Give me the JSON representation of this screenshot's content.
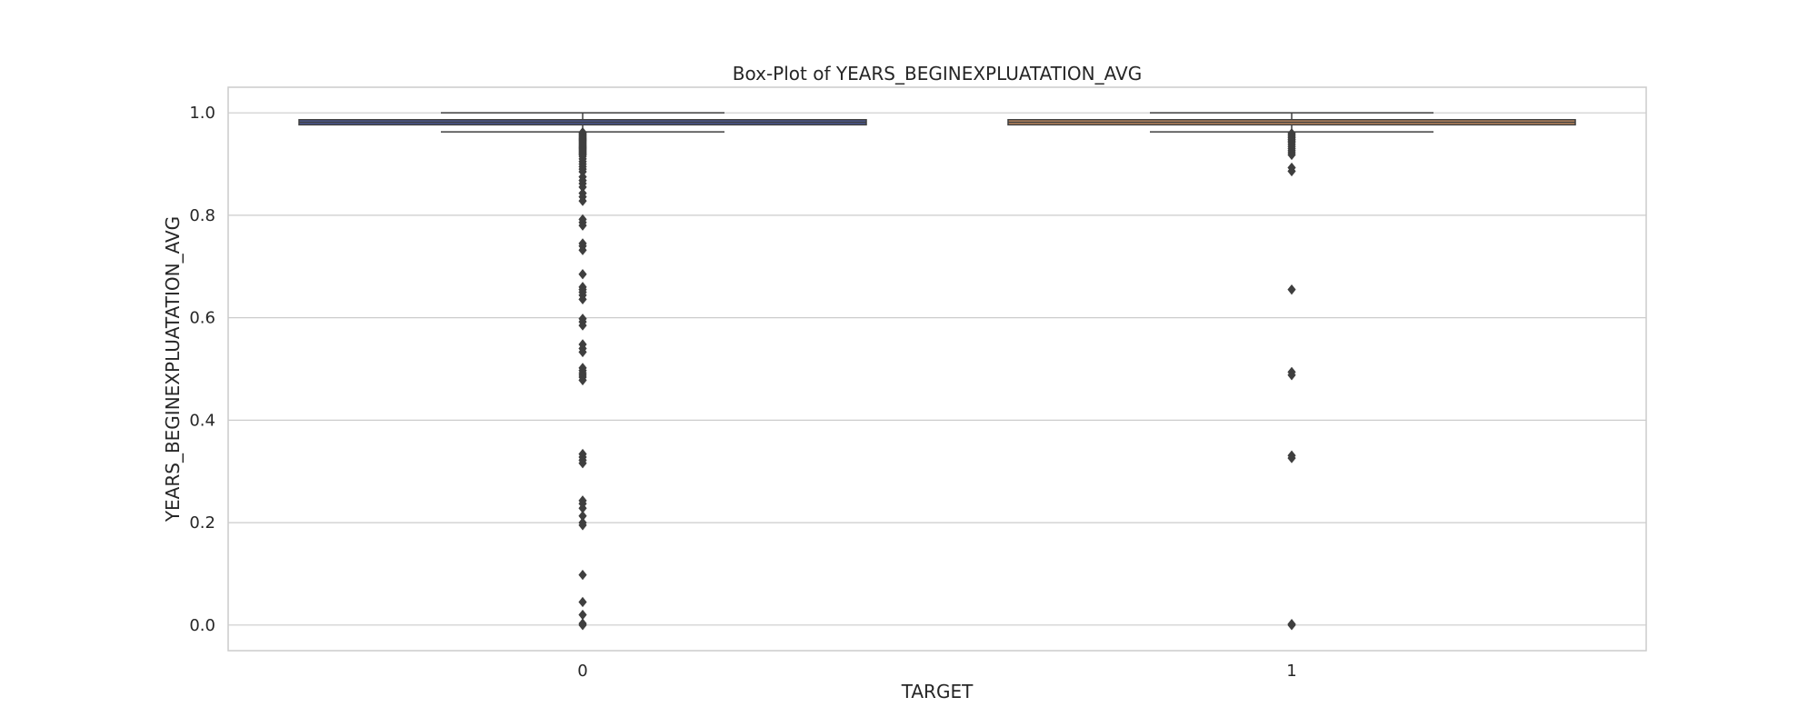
{
  "chart_data": {
    "type": "box",
    "title": "Box-Plot of YEARS_BEGINEXPLUATATION_AVG",
    "xlabel": "TARGET",
    "ylabel": "YEARS_BEGINEXPLUATATION_AVG",
    "categories": [
      "0",
      "1"
    ],
    "ylim": [
      -0.05,
      1.05
    ],
    "yticks": [
      0.0,
      0.2,
      0.4,
      0.6,
      0.8,
      1.0
    ],
    "ytick_labels": [
      "0.0",
      "0.2",
      "0.4",
      "0.6",
      "0.8",
      "1.0"
    ],
    "grid": true,
    "boxes": [
      {
        "category": "0",
        "color": "#4c5a9a",
        "q1": 0.9767,
        "median": 0.9816,
        "q3": 0.9866,
        "whisker_low": 0.9628,
        "whisker_high": 1.0,
        "outliers": [
          0.962,
          0.96,
          0.958,
          0.956,
          0.954,
          0.952,
          0.95,
          0.948,
          0.946,
          0.944,
          0.942,
          0.94,
          0.938,
          0.936,
          0.934,
          0.932,
          0.93,
          0.928,
          0.926,
          0.924,
          0.922,
          0.92,
          0.918,
          0.915,
          0.91,
          0.905,
          0.9,
          0.895,
          0.89,
          0.885,
          0.875,
          0.868,
          0.862,
          0.855,
          0.843,
          0.836,
          0.828,
          0.792,
          0.786,
          0.78,
          0.745,
          0.74,
          0.732,
          0.685,
          0.66,
          0.655,
          0.65,
          0.644,
          0.636,
          0.598,
          0.592,
          0.585,
          0.548,
          0.54,
          0.533,
          0.502,
          0.497,
          0.492,
          0.488,
          0.484,
          0.478,
          0.334,
          0.328,
          0.322,
          0.316,
          0.243,
          0.237,
          0.228,
          0.213,
          0.2,
          0.195,
          0.098,
          0.045,
          0.02,
          0.003,
          0.0
        ]
      },
      {
        "category": "1",
        "color": "#c88e60",
        "q1": 0.9767,
        "median": 0.9816,
        "q3": 0.9866,
        "whisker_low": 0.9628,
        "whisker_high": 1.0,
        "outliers": [
          0.96,
          0.957,
          0.954,
          0.951,
          0.948,
          0.945,
          0.942,
          0.938,
          0.934,
          0.93,
          0.926,
          0.922,
          0.918,
          0.893,
          0.886,
          0.655,
          0.494,
          0.488,
          0.331,
          0.326,
          0.002,
          0.0
        ]
      }
    ]
  }
}
